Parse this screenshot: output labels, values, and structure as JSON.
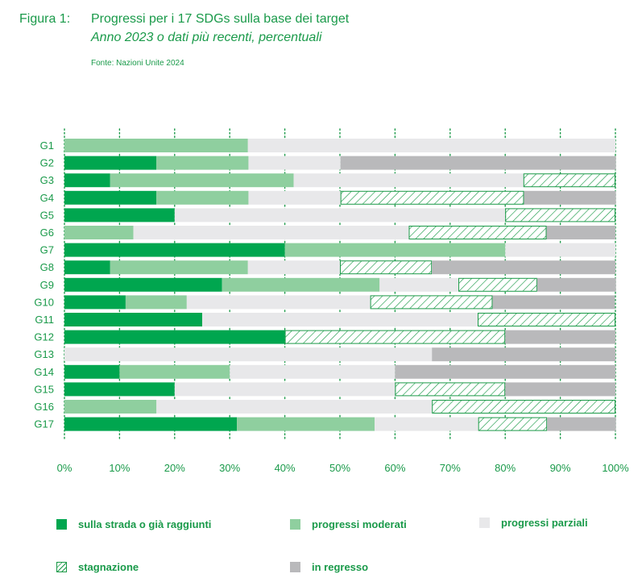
{
  "header": {
    "figure_label": "Figura 1:",
    "title": "Progressi per i 17 SDGs sulla base dei target",
    "subtitle": "Anno 2023 o dati più recenti, percentuali",
    "source": "Fonte: Nazioni Unite 2024"
  },
  "colors": {
    "on_track": "#00a64f",
    "moderate": "#8fcf9f",
    "partial": "#e8e8ea",
    "stagnation": "#1b9a48",
    "regress": "#b9b9bb",
    "text": "#1a9a4a"
  },
  "legend": [
    {
      "key": "on_track",
      "label": "sulla strada o già raggiunti"
    },
    {
      "key": "moderate",
      "label": "progressi moderati"
    },
    {
      "key": "partial",
      "label": "progressi parziali"
    },
    {
      "key": "stagnation",
      "label": "stagnazione"
    },
    {
      "key": "regress",
      "label": "in regresso"
    }
  ],
  "chart_data": {
    "type": "bar",
    "orientation": "horizontal",
    "stacked": true,
    "categories": [
      "G1",
      "G2",
      "G3",
      "G4",
      "G5",
      "G6",
      "G7",
      "G8",
      "G9",
      "G10",
      "G11",
      "G12",
      "G13",
      "G14",
      "G15",
      "G16",
      "G17"
    ],
    "series": [
      {
        "key": "on_track",
        "name": "sulla strada o già raggiunti",
        "values": [
          0,
          16.7,
          8.3,
          16.7,
          20,
          0,
          40,
          8.3,
          28.6,
          11.1,
          25,
          40,
          0,
          10,
          20,
          0,
          31.3
        ]
      },
      {
        "key": "moderate",
        "name": "progressi moderati",
        "values": [
          33.3,
          16.7,
          33.3,
          16.7,
          0,
          12.5,
          40,
          25,
          28.6,
          11.1,
          0,
          0,
          0,
          20,
          0,
          16.7,
          25
        ]
      },
      {
        "key": "partial",
        "name": "progressi parziali",
        "values": [
          66.7,
          16.7,
          41.7,
          16.7,
          60,
          50,
          20,
          16.7,
          14.3,
          33.3,
          50,
          0,
          66.7,
          30,
          40,
          50,
          18.8
        ]
      },
      {
        "key": "stagnation",
        "name": "stagnazione",
        "values": [
          0,
          0,
          16.7,
          33.3,
          20,
          25,
          0,
          16.7,
          14.3,
          22.2,
          25,
          40,
          0,
          0,
          20,
          33.3,
          12.5
        ]
      },
      {
        "key": "regress",
        "name": "in regresso",
        "values": [
          0,
          50,
          0,
          16.7,
          0,
          12.5,
          0,
          33.3,
          14.3,
          22.2,
          0,
          20,
          33.3,
          40,
          20,
          0,
          12.5
        ]
      }
    ],
    "xlim": [
      0,
      100
    ],
    "xticks": [
      "0%",
      "10%",
      "20%",
      "30%",
      "40%",
      "50%",
      "60%",
      "70%",
      "80%",
      "90%",
      "100%"
    ],
    "xlabel": "",
    "ylabel": "",
    "grid": "vertical dotted"
  }
}
